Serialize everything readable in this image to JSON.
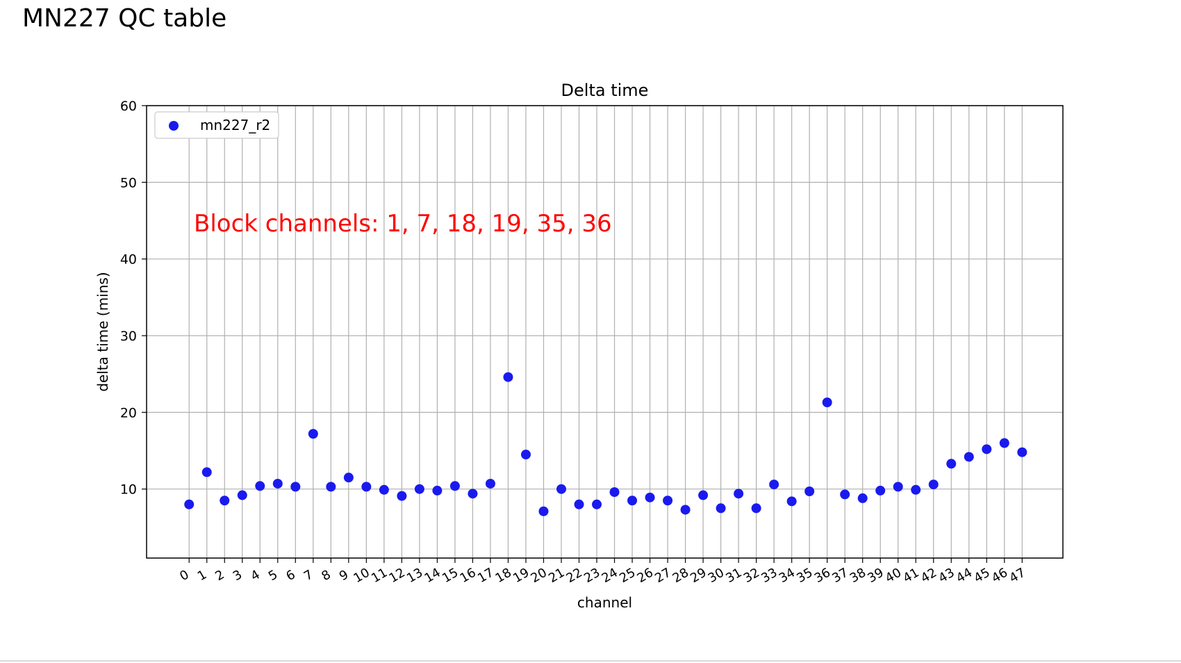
{
  "page_title": "MN227 QC table",
  "chart_data": {
    "type": "scatter",
    "title": "Delta time",
    "xlabel": "channel",
    "ylabel": "delta time (mins)",
    "x": [
      0,
      1,
      2,
      3,
      4,
      5,
      6,
      7,
      8,
      9,
      10,
      11,
      12,
      13,
      14,
      15,
      16,
      17,
      18,
      19,
      20,
      21,
      22,
      23,
      24,
      25,
      26,
      27,
      28,
      29,
      30,
      31,
      32,
      33,
      34,
      35,
      36,
      37,
      38,
      39,
      40,
      41,
      42,
      43,
      44,
      45,
      46,
      47
    ],
    "series": [
      {
        "name": "mn227_r2",
        "color": "#1a1aee",
        "values": [
          8.0,
          12.2,
          8.5,
          9.2,
          10.4,
          10.7,
          10.3,
          17.2,
          10.3,
          11.5,
          10.3,
          9.9,
          9.1,
          10.0,
          9.8,
          10.4,
          9.4,
          10.7,
          24.6,
          14.5,
          7.1,
          10.0,
          8.0,
          8.0,
          9.6,
          8.5,
          8.9,
          8.5,
          7.3,
          9.2,
          7.5,
          9.4,
          7.5,
          10.6,
          8.4,
          9.7,
          21.3,
          9.3,
          8.8,
          9.8,
          10.3,
          9.9,
          10.6,
          13.3,
          14.2,
          15.2,
          16.0,
          14.8
        ]
      }
    ],
    "yticks": [
      10,
      20,
      30,
      40,
      50,
      60
    ],
    "ylim": [
      1,
      60
    ],
    "xlim": [
      -2.4,
      49.3
    ],
    "grid": true,
    "legend": "top-left",
    "annotation": {
      "text": "Block channels: 1, 7, 18, 19, 35, 36",
      "color": "#ff0000"
    }
  }
}
